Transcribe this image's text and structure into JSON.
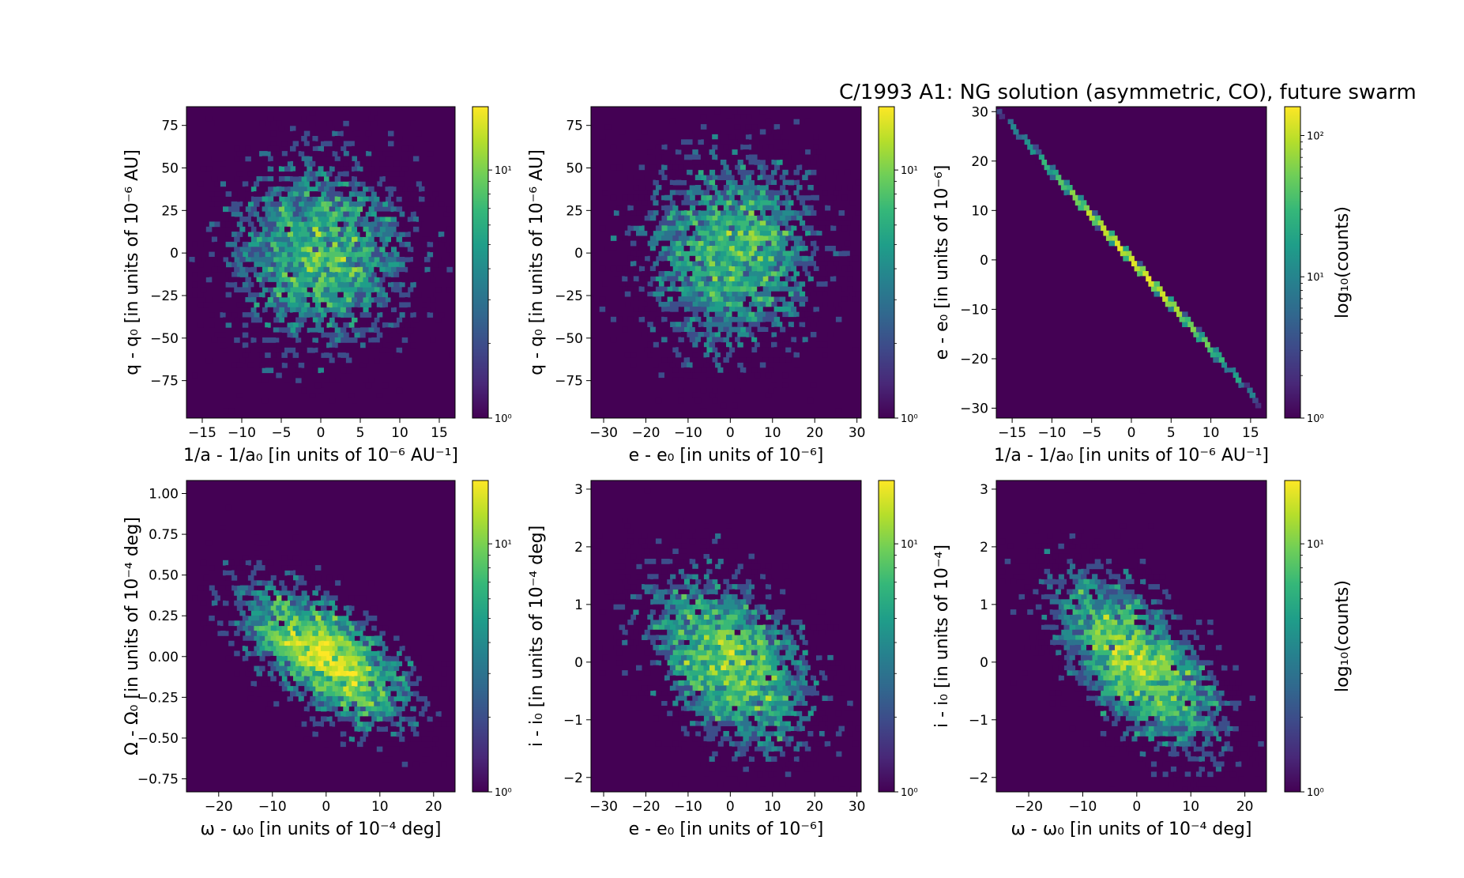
{
  "figure": {
    "title": "C/1993 A1:  NG solution (asymmetric, CO), future swarm"
  },
  "colormap": [
    "#440154",
    "#482878",
    "#3e4989",
    "#31688e",
    "#26828e",
    "#1f9e89",
    "#35b779",
    "#6ece58",
    "#b5de2b",
    "#fde725"
  ],
  "chart_data": [
    {
      "type": "heatmap",
      "xlabel": "1/a - 1/a₀ [in units of 10⁻⁶ AU⁻¹]",
      "ylabel": "q - q₀ [in units of 10⁻⁶ AU]",
      "xlim": [
        -17,
        17
      ],
      "ylim": [
        -97,
        86
      ],
      "xticks": [
        -15,
        -10,
        -5,
        0,
        5,
        10,
        15
      ],
      "yticks": [
        -75,
        -50,
        -25,
        0,
        25,
        50,
        75
      ],
      "distribution": {
        "cx": 0,
        "cy": 0,
        "sx": 6,
        "sy": 30,
        "rho": 0.0,
        "n": 4000,
        "seed": 11
      },
      "colorbar": {
        "min": 1,
        "max": 18,
        "scale": "log",
        "ticks": [
          "10⁰",
          "10¹"
        ],
        "label": ""
      }
    },
    {
      "type": "heatmap",
      "xlabel": "e - e₀ [in units of 10⁻⁶]",
      "ylabel": "q - q₀ [in units of 10⁻⁶ AU]",
      "xlim": [
        -33,
        31
      ],
      "ylim": [
        -97,
        86
      ],
      "xticks": [
        -30,
        -20,
        -10,
        0,
        10,
        20,
        30
      ],
      "yticks": [
        -75,
        -50,
        -25,
        0,
        25,
        50,
        75
      ],
      "distribution": {
        "cx": 0,
        "cy": 0,
        "sx": 11,
        "sy": 30,
        "rho": 0.0,
        "n": 4000,
        "seed": 23
      },
      "colorbar": {
        "min": 1,
        "max": 18,
        "scale": "log",
        "ticks": [
          "10⁰",
          "10¹"
        ],
        "label": ""
      }
    },
    {
      "type": "heatmap",
      "xlabel": "1/a - 1/a₀ [in units of 10⁻⁶ AU⁻¹]",
      "ylabel": "e - e₀ [in units of 10⁻⁶]",
      "xlim": [
        -17,
        17
      ],
      "ylim": [
        -32,
        31
      ],
      "xticks": [
        -15,
        -10,
        -5,
        0,
        5,
        10,
        15
      ],
      "yticks": [
        -30,
        -20,
        -10,
        0,
        10,
        20,
        30
      ],
      "distribution": {
        "cx": 0,
        "cy": 0,
        "sx": 6,
        "sy": 10.8,
        "rho": -0.9999,
        "n": 4000,
        "seed": 37
      },
      "colorbar": {
        "min": 1,
        "max": 160,
        "scale": "log",
        "ticks": [
          "10⁰",
          "10¹",
          "10²"
        ],
        "label": "log₁₀(counts)"
      }
    },
    {
      "type": "heatmap",
      "xlabel": "ω - ω₀ [in units of 10⁻⁴ deg]",
      "ylabel": "Ω - Ω₀ [in units of 10⁻⁴ deg]",
      "xlim": [
        -26,
        24
      ],
      "ylim": [
        -0.83,
        1.08
      ],
      "xticks": [
        -20,
        -10,
        0,
        10,
        20
      ],
      "yticks": [
        -0.75,
        -0.5,
        -0.25,
        0.0,
        0.25,
        0.5,
        0.75,
        1.0
      ],
      "yticklabels": [
        "−0.75",
        "−0.50",
        "−0.25",
        "0.00",
        "0.25",
        "0.50",
        "0.75",
        "1.00"
      ],
      "distribution": {
        "cx": 0,
        "cy": 0,
        "sx": 8,
        "sy": 0.22,
        "rho": -0.62,
        "n": 4000,
        "seed": 41
      },
      "colorbar": {
        "min": 1,
        "max": 18,
        "scale": "log",
        "ticks": [
          "10⁰",
          "10¹"
        ],
        "label": ""
      }
    },
    {
      "type": "heatmap",
      "xlabel": "e - e₀ [in units of 10⁻⁶]",
      "ylabel": "i - i₀ [in units of 10⁻⁴ deg]",
      "xlim": [
        -33,
        31
      ],
      "ylim": [
        -2.25,
        3.15
      ],
      "xticks": [
        -30,
        -20,
        -10,
        0,
        10,
        20,
        30
      ],
      "yticks": [
        -2,
        -1,
        0,
        1,
        2,
        3
      ],
      "distribution": {
        "cx": 0,
        "cy": 0,
        "sx": 10.5,
        "sy": 0.8,
        "rho": -0.45,
        "n": 4000,
        "seed": 53
      },
      "colorbar": {
        "min": 1,
        "max": 18,
        "scale": "log",
        "ticks": [
          "10⁰",
          "10¹"
        ],
        "label": ""
      }
    },
    {
      "type": "heatmap",
      "xlabel": "ω - ω₀ [in units of 10⁻⁴ deg]",
      "ylabel": "i - i₀ [in units of 10⁻⁴]",
      "xlim": [
        -26,
        24
      ],
      "ylim": [
        -2.25,
        3.15
      ],
      "xticks": [
        -20,
        -10,
        0,
        10,
        20
      ],
      "yticks": [
        -2,
        -1,
        0,
        1,
        2,
        3
      ],
      "distribution": {
        "cx": 0,
        "cy": 0,
        "sx": 8,
        "sy": 0.8,
        "rho": -0.62,
        "n": 4000,
        "seed": 67
      },
      "colorbar": {
        "min": 1,
        "max": 18,
        "scale": "log",
        "ticks": [
          "10⁰",
          "10¹"
        ],
        "label": "log₁₀(counts)"
      }
    }
  ]
}
